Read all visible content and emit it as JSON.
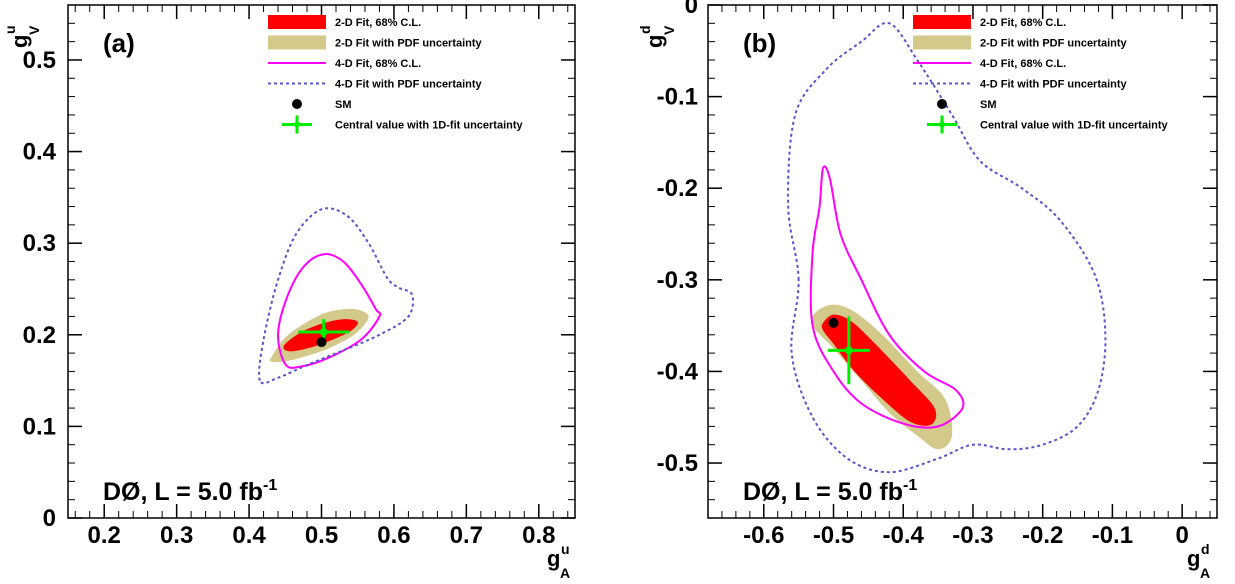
{
  "chart_data": [
    {
      "type": "scatter",
      "panel_label": "(a)",
      "experiment_label": "DØ, L = 5.0 fb",
      "experiment_label_sup": "-1",
      "xlabel_main": "g",
      "xlabel_sup": "u",
      "xlabel_sub": "A",
      "ylabel_main": "g",
      "ylabel_sup": "u",
      "ylabel_sub": "V",
      "xlim": [
        0.15,
        0.85
      ],
      "ylim": [
        0,
        0.56
      ],
      "x_ticks": [
        "0.2",
        "0.3",
        "0.4",
        "0.5",
        "0.6",
        "0.7",
        "0.8"
      ],
      "y_ticks": [
        "0",
        "0.1",
        "0.2",
        "0.3",
        "0.4",
        "0.5"
      ],
      "legend": [
        {
          "label": "2-D Fit, 68% C.L.",
          "style": "fill",
          "color": "#ff0000"
        },
        {
          "label": "2-D Fit with PDF uncertainty",
          "style": "fill",
          "color": "#d2c98a"
        },
        {
          "label": "4-D Fit, 68% C.L.",
          "style": "line",
          "color": "#ff00ff"
        },
        {
          "label": "4-D Fit with PDF uncertainty",
          "style": "dashed",
          "color": "#5555cc"
        },
        {
          "label": "SM",
          "style": "dot",
          "color": "#000000"
        },
        {
          "label": "Central value with 1D-fit uncertainty",
          "style": "cross",
          "color": "#00ee00"
        }
      ],
      "sm_point": {
        "x": 0.5,
        "y": 0.192
      },
      "central_value": {
        "x": 0.503,
        "y": 0.203,
        "x_err": 0.035,
        "y_err": 0.014
      },
      "contour_2d_pdf": [
        [
          0.432,
          0.177
        ],
        [
          0.45,
          0.197
        ],
        [
          0.48,
          0.214
        ],
        [
          0.51,
          0.225
        ],
        [
          0.545,
          0.228
        ],
        [
          0.565,
          0.22
        ],
        [
          0.548,
          0.202
        ],
        [
          0.515,
          0.187
        ],
        [
          0.48,
          0.177
        ],
        [
          0.45,
          0.171
        ],
        [
          0.43,
          0.171
        ]
      ],
      "contour_2d": [
        [
          0.448,
          0.188
        ],
        [
          0.47,
          0.202
        ],
        [
          0.5,
          0.212
        ],
        [
          0.53,
          0.217
        ],
        [
          0.55,
          0.214
        ],
        [
          0.54,
          0.204
        ],
        [
          0.51,
          0.193
        ],
        [
          0.48,
          0.185
        ],
        [
          0.455,
          0.182
        ]
      ],
      "contour_4d": [
        [
          0.45,
          0.168
        ],
        [
          0.44,
          0.2
        ],
        [
          0.452,
          0.24
        ],
        [
          0.475,
          0.274
        ],
        [
          0.503,
          0.288
        ],
        [
          0.53,
          0.28
        ],
        [
          0.555,
          0.255
        ],
        [
          0.575,
          0.228
        ],
        [
          0.58,
          0.22
        ],
        [
          0.555,
          0.195
        ],
        [
          0.51,
          0.175
        ],
        [
          0.47,
          0.165
        ]
      ],
      "contour_4d_pdf": [
        [
          0.415,
          0.15
        ],
        [
          0.42,
          0.195
        ],
        [
          0.44,
          0.26
        ],
        [
          0.465,
          0.31
        ],
        [
          0.5,
          0.337
        ],
        [
          0.535,
          0.33
        ],
        [
          0.565,
          0.3
        ],
        [
          0.59,
          0.263
        ],
        [
          0.605,
          0.252
        ],
        [
          0.625,
          0.244
        ],
        [
          0.62,
          0.22
        ],
        [
          0.58,
          0.2
        ],
        [
          0.53,
          0.183
        ],
        [
          0.48,
          0.167
        ],
        [
          0.44,
          0.153
        ]
      ]
    },
    {
      "type": "scatter",
      "panel_label": "(b)",
      "experiment_label": "DØ, L = 5.0 fb",
      "experiment_label_sup": "-1",
      "xlabel_main": "g",
      "xlabel_sup": "d",
      "xlabel_sub": "A",
      "ylabel_main": "g",
      "ylabel_sup": "d",
      "ylabel_sub": "V",
      "xlim": [
        -0.68,
        0.05
      ],
      "ylim": [
        -0.56,
        0.0
      ],
      "x_ticks": [
        "-0.6",
        "-0.5",
        "-0.4",
        "-0.3",
        "-0.2",
        "-0.1",
        "0"
      ],
      "y_ticks": [
        "-0.5",
        "-0.4",
        "-0.3",
        "-0.2",
        "-0.1",
        "0"
      ],
      "legend": [
        {
          "label": "2-D Fit, 68% C.L.",
          "style": "fill",
          "color": "#ff0000"
        },
        {
          "label": "2-D Fit with PDF uncertainty",
          "style": "fill",
          "color": "#d2c98a"
        },
        {
          "label": "4-D Fit, 68% C.L.",
          "style": "line",
          "color": "#ff00ff"
        },
        {
          "label": "4-D Fit with PDF uncertainty",
          "style": "dashed",
          "color": "#5555cc"
        },
        {
          "label": "SM",
          "style": "dot",
          "color": "#000000"
        },
        {
          "label": "Central value with 1D-fit uncertainty",
          "style": "cross",
          "color": "#00ee00"
        }
      ],
      "sm_point": {
        "x": -0.5,
        "y": -0.347
      },
      "central_value": {
        "x": -0.478,
        "y": -0.377,
        "x_err": 0.03,
        "y_err": 0.037
      },
      "contour_2d_pdf": [
        [
          -0.525,
          -0.335
        ],
        [
          -0.5,
          -0.327
        ],
        [
          -0.47,
          -0.335
        ],
        [
          -0.43,
          -0.36
        ],
        [
          -0.38,
          -0.4
        ],
        [
          -0.34,
          -0.43
        ],
        [
          -0.33,
          -0.47
        ],
        [
          -0.35,
          -0.485
        ],
        [
          -0.38,
          -0.47
        ],
        [
          -0.42,
          -0.445
        ],
        [
          -0.46,
          -0.41
        ],
        [
          -0.5,
          -0.375
        ],
        [
          -0.53,
          -0.35
        ]
      ],
      "contour_2d": [
        [
          -0.515,
          -0.347
        ],
        [
          -0.5,
          -0.338
        ],
        [
          -0.475,
          -0.345
        ],
        [
          -0.44,
          -0.37
        ],
        [
          -0.39,
          -0.41
        ],
        [
          -0.355,
          -0.44
        ],
        [
          -0.36,
          -0.458
        ],
        [
          -0.39,
          -0.455
        ],
        [
          -0.43,
          -0.43
        ],
        [
          -0.47,
          -0.4
        ],
        [
          -0.5,
          -0.37
        ],
        [
          -0.515,
          -0.355
        ]
      ],
      "contour_4d": [
        [
          -0.515,
          -0.178
        ],
        [
          -0.52,
          -0.22
        ],
        [
          -0.53,
          -0.27
        ],
        [
          -0.53,
          -0.35
        ],
        [
          -0.5,
          -0.4
        ],
        [
          -0.46,
          -0.435
        ],
        [
          -0.4,
          -0.457
        ],
        [
          -0.35,
          -0.46
        ],
        [
          -0.315,
          -0.44
        ],
        [
          -0.325,
          -0.42
        ],
        [
          -0.37,
          -0.4
        ],
        [
          -0.42,
          -0.36
        ],
        [
          -0.46,
          -0.3
        ],
        [
          -0.49,
          -0.25
        ],
        [
          -0.505,
          -0.19
        ]
      ],
      "contour_4d_pdf": [
        [
          -0.55,
          -0.3
        ],
        [
          -0.565,
          -0.22
        ],
        [
          -0.555,
          -0.12
        ],
        [
          -0.51,
          -0.07
        ],
        [
          -0.46,
          -0.04
        ],
        [
          -0.42,
          -0.02
        ],
        [
          -0.38,
          -0.06
        ],
        [
          -0.33,
          -0.12
        ],
        [
          -0.29,
          -0.17
        ],
        [
          -0.23,
          -0.2
        ],
        [
          -0.175,
          -0.235
        ],
        [
          -0.125,
          -0.295
        ],
        [
          -0.11,
          -0.36
        ],
        [
          -0.12,
          -0.42
        ],
        [
          -0.15,
          -0.46
        ],
        [
          -0.2,
          -0.48
        ],
        [
          -0.25,
          -0.485
        ],
        [
          -0.3,
          -0.48
        ],
        [
          -0.35,
          -0.495
        ],
        [
          -0.42,
          -0.51
        ],
        [
          -0.48,
          -0.495
        ],
        [
          -0.53,
          -0.45
        ],
        [
          -0.56,
          -0.38
        ]
      ]
    }
  ]
}
